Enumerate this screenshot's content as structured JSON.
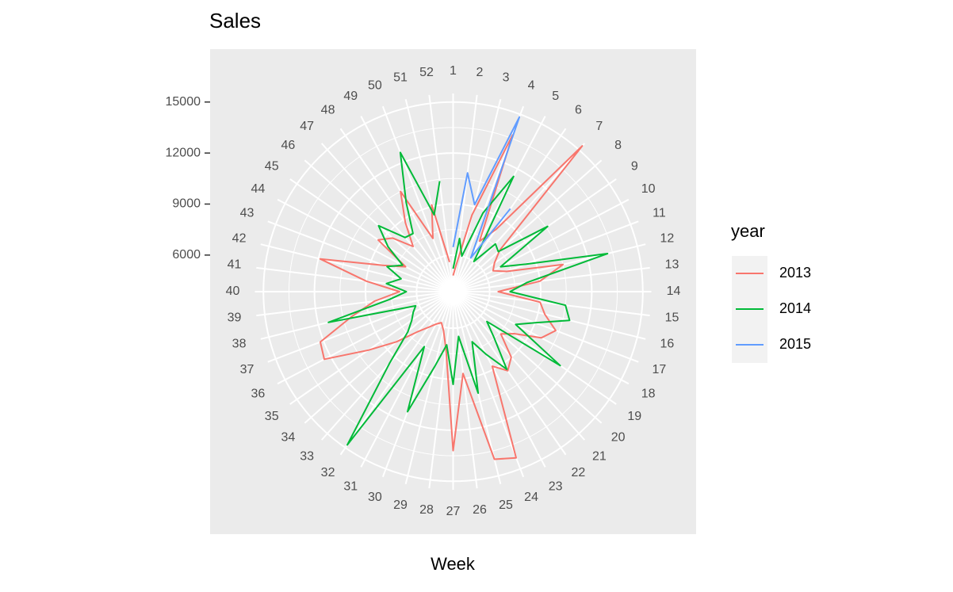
{
  "chart_data": {
    "type": "polar-line",
    "title": "Sales",
    "x_label": "Week",
    "legend_title": "year",
    "categories": [
      "1",
      "2",
      "3",
      "4",
      "5",
      "6",
      "7",
      "8",
      "9",
      "10",
      "11",
      "12",
      "13",
      "14",
      "15",
      "16",
      "17",
      "18",
      "19",
      "20",
      "21",
      "22",
      "23",
      "24",
      "25",
      "26",
      "27",
      "28",
      "29",
      "30",
      "31",
      "32",
      "33",
      "34",
      "35",
      "36",
      "37",
      "38",
      "39",
      "40",
      "41",
      "42",
      "43",
      "44",
      "45",
      "46",
      "47",
      "48",
      "49",
      "50",
      "51",
      "52"
    ],
    "ylim": [
      3850,
      15500
    ],
    "yticks": [
      6000,
      9000,
      12000,
      15000
    ],
    "grid": true,
    "legend": "right",
    "series": [
      {
        "name": "2013",
        "color": "#F8766D",
        "values": [
          4800,
          5500,
          8500,
          13700,
          7200,
          8300,
          15300,
          7500,
          6800,
          6500,
          7200,
          10500,
          9000,
          6500,
          9000,
          9400,
          10300,
          9700,
          8200,
          7600,
          9000,
          9500,
          8800,
          14300,
          14000,
          8700,
          13200,
          7300,
          6200,
          5800,
          6000,
          6400,
          7000,
          8300,
          9900,
          12400,
          12200,
          10000,
          8500,
          7000,
          9000,
          11900,
          8200,
          7000,
          9200,
          8600,
          7400,
          8800,
          10500,
          7200,
          9100,
          5600
        ]
      },
      {
        "name": "2014",
        "color": "#00BA38",
        "values": [
          5200,
          7000,
          6000,
          8800,
          11500,
          6000,
          7600,
          7400,
          10600,
          7000,
          8400,
          13200,
          8200,
          7200,
          10500,
          10900,
          9000,
          8000,
          11500,
          6500,
          7500,
          9400,
          8000,
          7000,
          10000,
          6500,
          9300,
          7000,
          8400,
          11400,
          7500,
          14800,
          9500,
          7400,
          6800,
          6500,
          6200,
          11400,
          7600,
          6600,
          7800,
          7000,
          8000,
          7200,
          8500,
          9700,
          8100,
          8000,
          9800,
          12600,
          8500,
          10400
        ]
      },
      {
        "name": "2015",
        "color": "#619CFF",
        "values": [
          6470,
          10880,
          9120,
          14830,
          6090,
          9770,
          null,
          null,
          null,
          null,
          null,
          null,
          null,
          null,
          null,
          null,
          null,
          null,
          null,
          null,
          null,
          null,
          null,
          null,
          null,
          null,
          null,
          null,
          null,
          null,
          null,
          null,
          null,
          null,
          null,
          null,
          null,
          null,
          null,
          null,
          null,
          null,
          null,
          null,
          null,
          null,
          null,
          null,
          null,
          null,
          null,
          null
        ]
      }
    ]
  }
}
